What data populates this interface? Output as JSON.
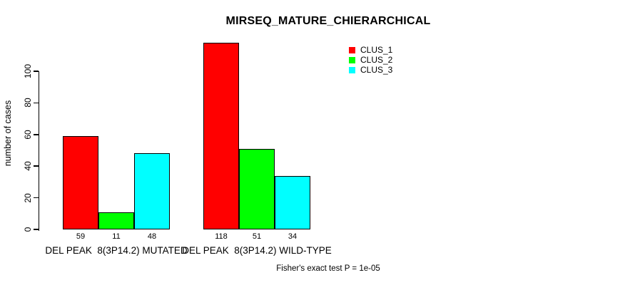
{
  "chart_data": {
    "type": "bar",
    "title": "MIRSEQ_MATURE_CHIERARCHICAL",
    "ylabel": "number of cases",
    "xlabel": "",
    "categories": [
      "DEL PEAK  8(3P14.2) MUTATED",
      "DEL PEAK  8(3P14.2) WILD-TYPE"
    ],
    "series": [
      {
        "name": "CLUS_1",
        "color": "#ff0000",
        "values": [
          59,
          118
        ]
      },
      {
        "name": "CLUS_2",
        "color": "#00ff00",
        "values": [
          11,
          51
        ]
      },
      {
        "name": "CLUS_3",
        "color": "#00ffff",
        "values": [
          48,
          34
        ]
      }
    ],
    "bar_value_labels": [
      [
        59,
        11,
        48
      ],
      [
        118,
        51,
        34
      ]
    ],
    "yticks": [
      0,
      20,
      40,
      60,
      80,
      100
    ],
    "ylim": [
      0,
      120
    ],
    "grid": false,
    "legend_position": "top-right",
    "legend_entries": [
      "CLUS_1",
      "CLUS_2",
      "CLUS_3"
    ],
    "axis_color": "#000000",
    "background_color": "#ffffff"
  },
  "annotation": {
    "text": "Fisher's exact test P = 1e-05"
  }
}
